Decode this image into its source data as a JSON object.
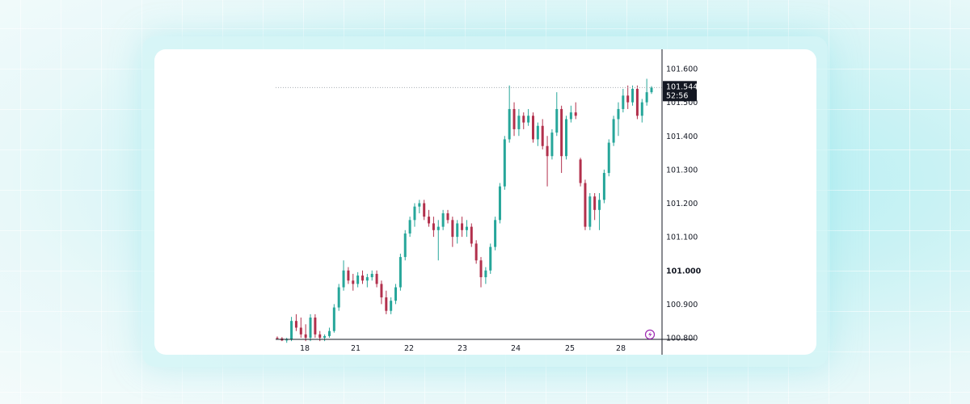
{
  "chart_data": {
    "type": "candlestick",
    "x_tick_labels": [
      "18",
      "21",
      "22",
      "23",
      "24",
      "25",
      "28"
    ],
    "y_tick_labels": [
      "101.600",
      "101.500",
      "101.400",
      "101.300",
      "101.200",
      "101.100",
      "101.000",
      "100.900",
      "100.800"
    ],
    "y_ticks": [
      101.6,
      101.5,
      101.4,
      101.3,
      101.2,
      101.1,
      101.0,
      100.9,
      100.8
    ],
    "bold_tick": "101.000",
    "ylim": [
      100.8,
      101.6
    ],
    "last_price": "101.544",
    "last_price_value": 101.544,
    "countdown": "52:56",
    "colors": {
      "up": "#26a69a",
      "down": "#b2304c",
      "text": "#131722",
      "axis": "#131722",
      "price_tag_bg": "#131722",
      "price_line": "#9aa0a6",
      "flash_icon": "#9c27b0"
    },
    "ohlc": [
      [
        100.8,
        100.804,
        100.795,
        100.798
      ],
      [
        100.798,
        100.802,
        100.79,
        100.792
      ],
      [
        100.792,
        100.8,
        100.785,
        100.796
      ],
      [
        100.796,
        100.862,
        100.79,
        100.85
      ],
      [
        100.85,
        100.87,
        100.82,
        100.83
      ],
      [
        100.83,
        100.86,
        100.8,
        100.81
      ],
      [
        100.81,
        100.84,
        100.79,
        100.8
      ],
      [
        100.8,
        100.87,
        100.79,
        100.86
      ],
      [
        100.86,
        100.87,
        100.8,
        100.81
      ],
      [
        100.81,
        100.82,
        100.79,
        100.8
      ],
      [
        100.8,
        100.81,
        100.79,
        100.805
      ],
      [
        100.805,
        100.83,
        100.8,
        100.82
      ],
      [
        100.82,
        100.9,
        100.815,
        100.89
      ],
      [
        100.89,
        100.96,
        100.88,
        100.95
      ],
      [
        100.95,
        101.03,
        100.94,
        101.0
      ],
      [
        101.0,
        101.01,
        100.96,
        100.97
      ],
      [
        100.97,
        100.99,
        100.94,
        100.96
      ],
      [
        100.96,
        100.995,
        100.95,
        100.985
      ],
      [
        100.985,
        101.0,
        100.96,
        100.97
      ],
      [
        100.97,
        100.99,
        100.95,
        100.98
      ],
      [
        100.98,
        101.0,
        100.97,
        100.99
      ],
      [
        100.99,
        101.0,
        100.95,
        100.96
      ],
      [
        100.96,
        100.97,
        100.9,
        100.92
      ],
      [
        100.92,
        100.94,
        100.87,
        100.88
      ],
      [
        100.88,
        100.92,
        100.87,
        100.91
      ],
      [
        100.91,
        100.96,
        100.9,
        100.95
      ],
      [
        100.95,
        101.05,
        100.94,
        101.04
      ],
      [
        101.04,
        101.12,
        101.03,
        101.11
      ],
      [
        101.11,
        101.16,
        101.1,
        101.15
      ],
      [
        101.15,
        101.2,
        101.13,
        101.19
      ],
      [
        101.19,
        101.21,
        101.17,
        101.2
      ],
      [
        101.2,
        101.21,
        101.15,
        101.16
      ],
      [
        101.16,
        101.18,
        101.13,
        101.14
      ],
      [
        101.14,
        101.16,
        101.1,
        101.12
      ],
      [
        101.12,
        101.15,
        101.03,
        101.13
      ],
      [
        101.13,
        101.18,
        101.12,
        101.17
      ],
      [
        101.17,
        101.18,
        101.14,
        101.15
      ],
      [
        101.15,
        101.16,
        101.07,
        101.1
      ],
      [
        101.1,
        101.15,
        101.08,
        101.14
      ],
      [
        101.14,
        101.16,
        101.1,
        101.12
      ],
      [
        101.12,
        101.15,
        101.1,
        101.13
      ],
      [
        101.13,
        101.14,
        101.07,
        101.08
      ],
      [
        101.08,
        101.09,
        101.02,
        101.03
      ],
      [
        101.03,
        101.04,
        100.95,
        100.98
      ],
      [
        100.98,
        101.01,
        100.96,
        101.0
      ],
      [
        101.0,
        101.08,
        100.99,
        101.07
      ],
      [
        101.07,
        101.16,
        101.06,
        101.15
      ],
      [
        101.15,
        101.26,
        101.14,
        101.25
      ],
      [
        101.25,
        101.4,
        101.24,
        101.39
      ],
      [
        101.39,
        101.55,
        101.38,
        101.48
      ],
      [
        101.48,
        101.5,
        101.4,
        101.42
      ],
      [
        101.42,
        101.48,
        101.4,
        101.46
      ],
      [
        101.46,
        101.47,
        101.42,
        101.44
      ],
      [
        101.44,
        101.48,
        101.43,
        101.46
      ],
      [
        101.46,
        101.47,
        101.38,
        101.39
      ],
      [
        101.39,
        101.44,
        101.37,
        101.43
      ],
      [
        101.43,
        101.45,
        101.36,
        101.37
      ],
      [
        101.37,
        101.4,
        101.25,
        101.34
      ],
      [
        101.34,
        101.42,
        101.33,
        101.41
      ],
      [
        101.41,
        101.53,
        101.4,
        101.48
      ],
      [
        101.48,
        101.49,
        101.29,
        101.34
      ],
      [
        101.34,
        101.46,
        101.33,
        101.45
      ],
      [
        101.45,
        101.49,
        101.44,
        101.47
      ],
      [
        101.47,
        101.5,
        101.45,
        101.46
      ],
      [
        101.33,
        101.335,
        101.25,
        101.26
      ],
      [
        101.26,
        101.27,
        101.12,
        101.13
      ],
      [
        101.13,
        101.23,
        101.12,
        101.22
      ],
      [
        101.22,
        101.23,
        101.15,
        101.18
      ],
      [
        101.18,
        101.23,
        101.12,
        101.21
      ],
      [
        101.21,
        101.3,
        101.2,
        101.29
      ],
      [
        101.29,
        101.39,
        101.28,
        101.38
      ],
      [
        101.38,
        101.46,
        101.37,
        101.45
      ],
      [
        101.45,
        101.5,
        101.4,
        101.48
      ],
      [
        101.48,
        101.54,
        101.47,
        101.52
      ],
      [
        101.52,
        101.55,
        101.48,
        101.5
      ],
      [
        101.5,
        101.55,
        101.49,
        101.54
      ],
      [
        101.54,
        101.55,
        101.45,
        101.46
      ],
      [
        101.46,
        101.51,
        101.44,
        101.5
      ],
      [
        101.5,
        101.57,
        101.49,
        101.53
      ],
      [
        101.53,
        101.548,
        101.525,
        101.544
      ]
    ]
  }
}
